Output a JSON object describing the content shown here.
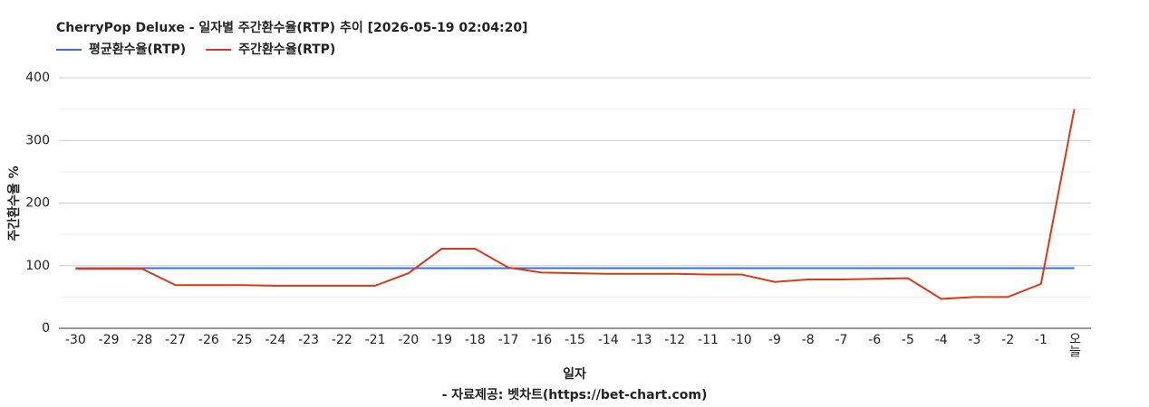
{
  "chart_data": {
    "type": "line",
    "title": "CherryPop Deluxe - 일자별 주간환수율(RTP) 추이 [2026-05-19 02:04:20]",
    "x_label": "일자",
    "y_label": "주간환수율 %",
    "source": "- 자료제공: 벳차트(https://bet-chart.com)",
    "categories": [
      "-30",
      "-29",
      "-28",
      "-27",
      "-26",
      "-25",
      "-24",
      "-23",
      "-22",
      "-21",
      "-20",
      "-19",
      "-18",
      "-17",
      "-16",
      "-15",
      "-14",
      "-13",
      "-12",
      "-11",
      "-10",
      "-9",
      "-8",
      "-7",
      "-6",
      "-5",
      "-4",
      "-3",
      "-2",
      "-1",
      "오늘"
    ],
    "series": [
      {
        "name": "평균환수율(RTP)",
        "color": "#3a6fd8",
        "values": [
          96,
          96,
          96,
          96,
          96,
          96,
          96,
          96,
          96,
          96,
          96,
          96,
          96,
          96,
          96,
          96,
          96,
          96,
          96,
          96,
          96,
          96,
          96,
          96,
          96,
          96,
          96,
          96,
          96,
          96,
          96
        ]
      },
      {
        "name": "주간환수율(RTP)",
        "color": "#dc3912",
        "values": [
          95,
          95,
          95,
          69,
          69,
          69,
          68,
          68,
          68,
          68,
          88,
          127,
          127,
          97,
          89,
          88,
          87,
          87,
          87,
          86,
          86,
          74,
          78,
          78,
          79,
          80,
          47,
          50,
          50,
          71,
          350
        ]
      }
    ],
    "ylim": [
      0,
      400
    ],
    "yticks": [
      0,
      100,
      200,
      300,
      400
    ],
    "yminor": [
      50,
      150,
      250,
      350
    ],
    "grid": true
  }
}
